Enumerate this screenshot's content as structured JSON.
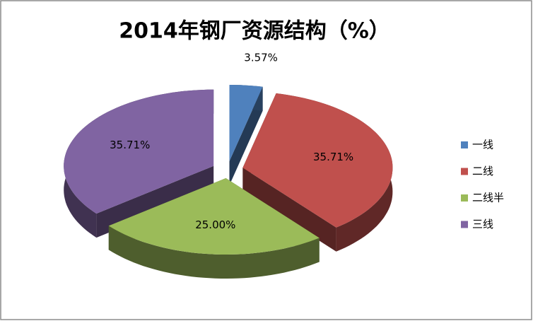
{
  "chart_data": {
    "type": "pie3d",
    "title": "2014年钢厂资源结构（%）",
    "categories": [
      "一线",
      "二线",
      "二线半",
      "三线"
    ],
    "values": [
      3.57,
      35.71,
      25.0,
      35.71
    ],
    "value_labels": [
      "3.57%",
      "35.71%",
      "25.00%",
      "35.71%"
    ],
    "colors": [
      "#4f81bd",
      "#c0504d",
      "#9bbb59",
      "#8064a2"
    ],
    "legend": "right"
  }
}
